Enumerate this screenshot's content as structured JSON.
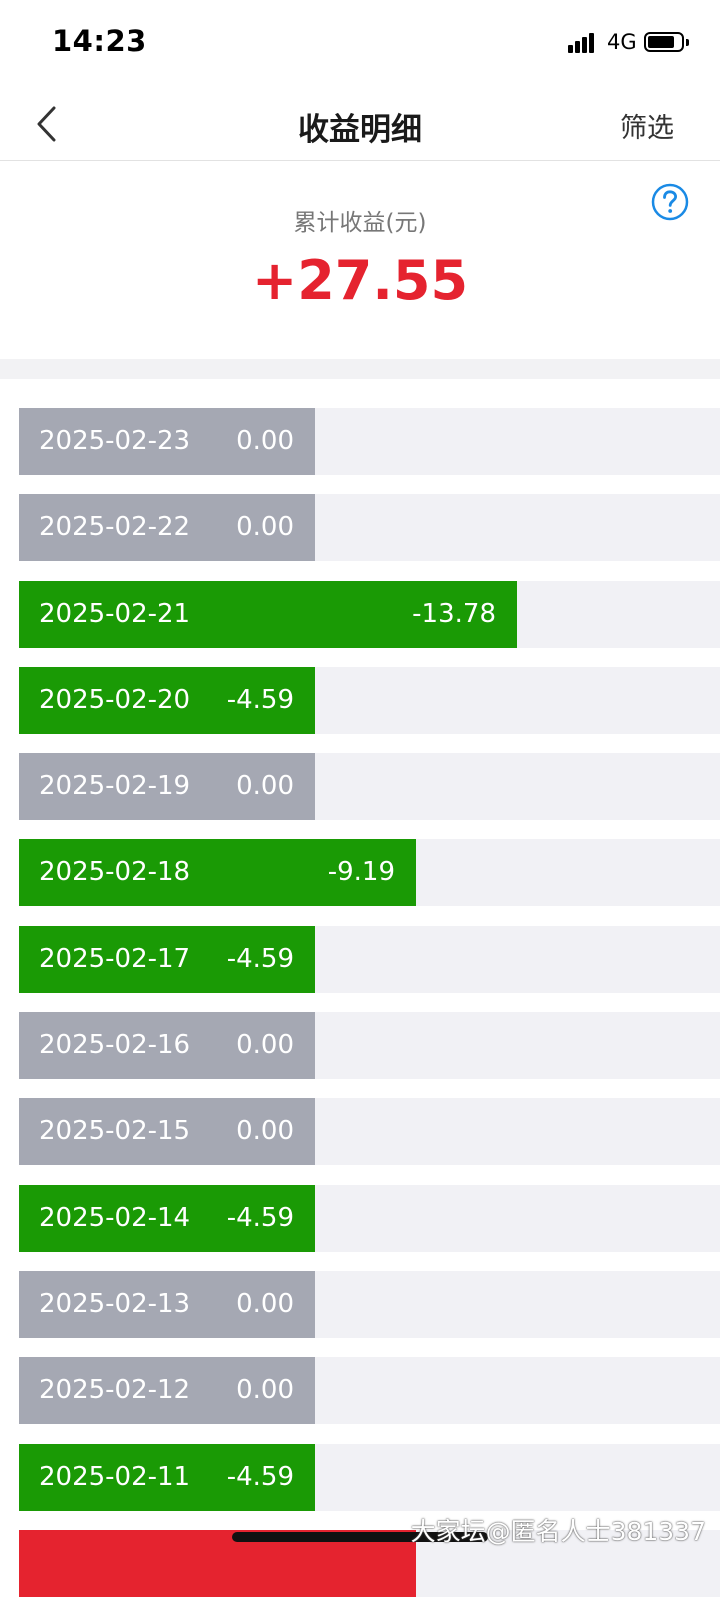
{
  "status_bar": {
    "time": "14:23",
    "network": "4G"
  },
  "nav": {
    "title": "收益明细",
    "filter_label": "筛选"
  },
  "summary": {
    "label": "累计收益(元)",
    "value": "+27.55"
  },
  "scale_max_abs": 13.78,
  "rows": [
    {
      "date": "2025-02-23",
      "amount": "0.00",
      "value": 0
    },
    {
      "date": "2025-02-22",
      "amount": "0.00",
      "value": 0
    },
    {
      "date": "2025-02-21",
      "amount": "-13.78",
      "value": -13.78
    },
    {
      "date": "2025-02-20",
      "amount": "-4.59",
      "value": -4.59
    },
    {
      "date": "2025-02-19",
      "amount": "0.00",
      "value": 0
    },
    {
      "date": "2025-02-18",
      "amount": "-9.19",
      "value": -9.19
    },
    {
      "date": "2025-02-17",
      "amount": "-4.59",
      "value": -4.59
    },
    {
      "date": "2025-02-16",
      "amount": "0.00",
      "value": 0
    },
    {
      "date": "2025-02-15",
      "amount": "0.00",
      "value": 0
    },
    {
      "date": "2025-02-14",
      "amount": "-4.59",
      "value": -4.59
    },
    {
      "date": "2025-02-13",
      "amount": "0.00",
      "value": 0
    },
    {
      "date": "2025-02-12",
      "amount": "0.00",
      "value": 0
    },
    {
      "date": "2025-02-11",
      "amount": "-4.59",
      "value": -4.59
    },
    {
      "date": "",
      "amount": "",
      "value": 9.19
    }
  ],
  "colors": {
    "zero": "#a5a8b3",
    "loss": "#1a9a05",
    "gain": "#e5232f",
    "accent": "#1a8ae5"
  },
  "watermark": "大家坛@匿名人士381337"
}
